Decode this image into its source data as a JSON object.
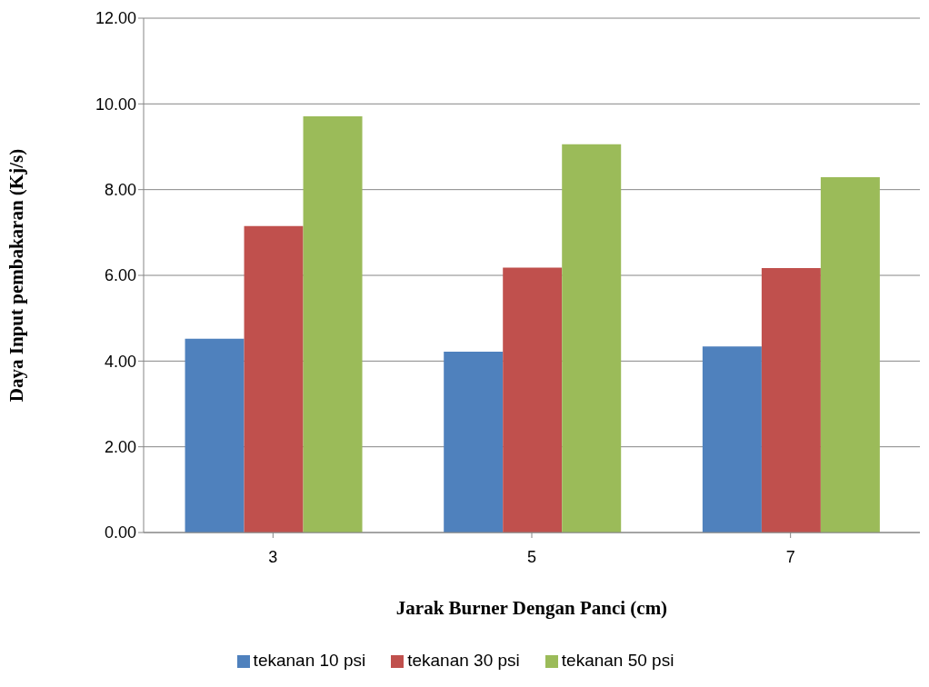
{
  "chart_data": {
    "type": "bar",
    "xlabel": "Jarak Burner Dengan Panci (cm)",
    "ylabel": "Daya Input pembakaran (Kj/s)",
    "categories": [
      "3",
      "5",
      "7"
    ],
    "series": [
      {
        "name": "tekanan 10 psi",
        "color": "#4f81bd",
        "values": [
          4.52,
          4.22,
          4.34
        ]
      },
      {
        "name": "tekanan 30 psi",
        "color": "#c0504d",
        "values": [
          7.15,
          6.18,
          6.17
        ]
      },
      {
        "name": "tekanan 50 psi",
        "color": "#9bbb59",
        "values": [
          9.71,
          9.06,
          8.29
        ]
      }
    ],
    "ylim": [
      0,
      12
    ],
    "yticks": [
      {
        "value": 0,
        "label": "0.00"
      },
      {
        "value": 2,
        "label": "2.00"
      },
      {
        "value": 4,
        "label": "4.00"
      },
      {
        "value": 6,
        "label": "6.00"
      },
      {
        "value": 8,
        "label": "8.00"
      },
      {
        "value": 10,
        "label": "10.00"
      },
      {
        "value": 12,
        "label": "12.00"
      }
    ],
    "grid": "y",
    "legend": "bottom"
  }
}
